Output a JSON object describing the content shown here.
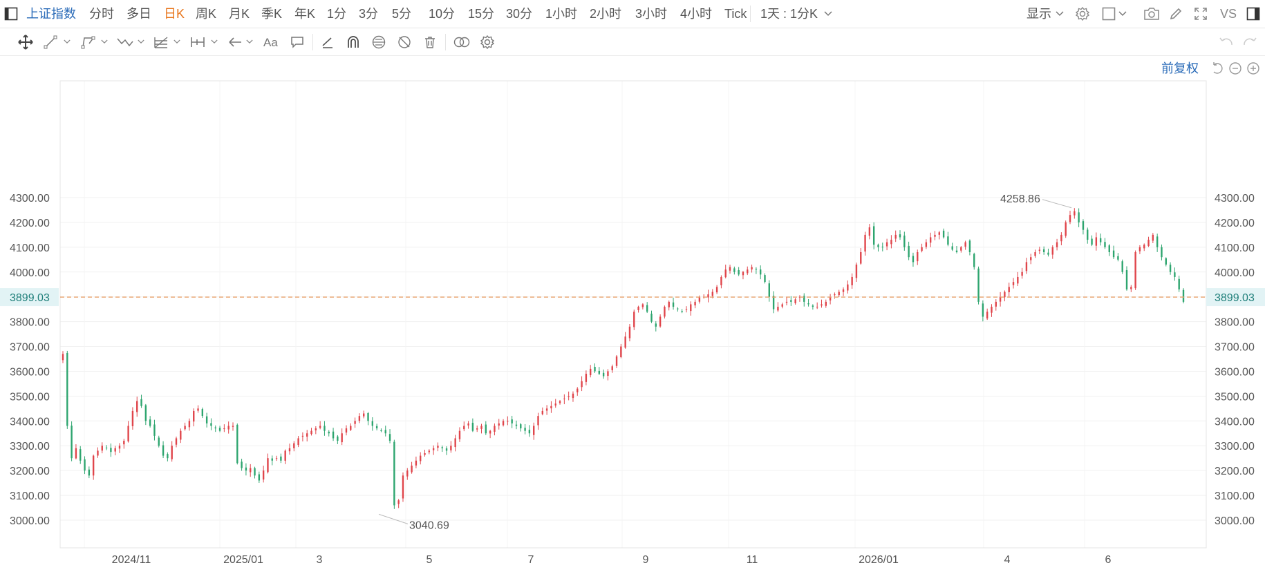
{
  "toolbar": {
    "symbol": "上证指数",
    "periods": [
      "分时",
      "多日",
      "日K",
      "周K",
      "月K",
      "季K",
      "年K",
      "1分",
      "3分",
      "5分",
      "10分",
      "15分",
      "30分",
      "1小时",
      "2小时",
      "3小时",
      "4小时",
      "Tick"
    ],
    "active_period": "日K",
    "interval_select": "1天 : 1分K",
    "display_label": "显示",
    "compare_label": "VS"
  },
  "adjust_label": "前复权",
  "colors": {
    "up": "#e0454b",
    "down": "#2ea56f",
    "last_price_line": "#e8a06a",
    "last_price_badge": "#e2f3f5",
    "accent": "#2a6bb8",
    "active": "#e8761c"
  },
  "icons": [
    "sidebar-toggle-icon",
    "settings-icon",
    "layout-icon",
    "camera-icon",
    "pencil-icon",
    "fullscreen-icon",
    "panel-icon",
    "move-icon",
    "line-tool-icon",
    "polyline-tool-icon",
    "wave-tool-icon",
    "fib-tool-icon",
    "measure-tool-icon",
    "arrow-tool-icon",
    "text-tool-icon",
    "comment-icon",
    "draw-pen-icon",
    "magnet-icon",
    "eye-lock-icon",
    "hide-icon",
    "trash-icon",
    "link-icon",
    "draw-settings-icon",
    "undo-icon",
    "redo-icon",
    "reset-icon",
    "zoom-out-icon",
    "zoom-in-icon"
  ],
  "chart_data": {
    "type": "candlestick",
    "ylim": [
      2950,
      4340
    ],
    "y_ticks": [
      3000,
      3100,
      3200,
      3300,
      3400,
      3500,
      3600,
      3700,
      3800,
      3900,
      4000,
      4100,
      4200,
      4300
    ],
    "y_tick_labels": [
      "3000.00",
      "3100.00",
      "3200.00",
      "3300.00",
      "3400.00",
      "3500.00",
      "3600.00",
      "3700.00",
      "3800.00",
      "3900.00",
      "4000.00",
      "4100.00",
      "4200.00",
      "4300.00"
    ],
    "x_labels": [
      {
        "label": "2024/11",
        "date": "2024-11-01"
      },
      {
        "label": "2025/01",
        "date": "2025-01-02"
      },
      {
        "label": "3",
        "date": "2025-03-03"
      },
      {
        "label": "5",
        "date": "2025-05-06"
      },
      {
        "label": "7",
        "date": "2025-07-01"
      },
      {
        "label": "9",
        "date": "2025-09-01"
      },
      {
        "label": "11",
        "date": "2025-11-03"
      },
      {
        "label": "2026/01",
        "date": "2026-01-05"
      },
      {
        "label": "4",
        "date": "2026-04-01"
      },
      {
        "label": "6",
        "date": "2026-06-01"
      }
    ],
    "last_price": 3899.03,
    "last_price_label": "3899.03",
    "high_label": "4258.86",
    "low_label": "3040.69",
    "closes": [
      3670,
      3380,
      3250,
      3290,
      3240,
      3200,
      3180,
      3260,
      3280,
      3300,
      3290,
      3275,
      3290,
      3300,
      3320,
      3380,
      3440,
      3480,
      3460,
      3400,
      3380,
      3340,
      3300,
      3260,
      3250,
      3300,
      3330,
      3360,
      3380,
      3400,
      3440,
      3450,
      3420,
      3390,
      3380,
      3370,
      3360,
      3370,
      3380,
      3380,
      3230,
      3210,
      3200,
      3210,
      3180,
      3160,
      3200,
      3250,
      3240,
      3250,
      3240,
      3280,
      3290,
      3310,
      3330,
      3340,
      3350,
      3360,
      3370,
      3380,
      3360,
      3350,
      3330,
      3320,
      3350,
      3370,
      3380,
      3400,
      3420,
      3430,
      3400,
      3380,
      3370,
      3360,
      3350,
      3320,
      3060,
      3080,
      3180,
      3200,
      3220,
      3240,
      3260,
      3270,
      3280,
      3290,
      3300,
      3290,
      3280,
      3300,
      3330,
      3360,
      3380,
      3390,
      3360,
      3370,
      3380,
      3350,
      3360,
      3380,
      3390,
      3400,
      3400,
      3390,
      3380,
      3370,
      3360,
      3350,
      3380,
      3420,
      3440,
      3450,
      3460,
      3470,
      3480,
      3490,
      3500,
      3510,
      3530,
      3560,
      3590,
      3610,
      3600,
      3590,
      3580,
      3600,
      3620,
      3660,
      3700,
      3740,
      3780,
      3840,
      3860,
      3870,
      3840,
      3800,
      3780,
      3820,
      3860,
      3880,
      3860,
      3850,
      3840,
      3850,
      3870,
      3880,
      3900,
      3900,
      3910,
      3920,
      3940,
      3980,
      4010,
      4020,
      4000,
      3990,
      4000,
      4010,
      4020,
      4010,
      3990,
      3960,
      3900,
      3850,
      3860,
      3870,
      3880,
      3880,
      3890,
      3900,
      3880,
      3870,
      3860,
      3860,
      3870,
      3880,
      3900,
      3910,
      3920,
      3930,
      3950,
      3980,
      4030,
      4080,
      4150,
      4180,
      4110,
      4100,
      4100,
      4120,
      4130,
      4150,
      4140,
      4100,
      4060,
      4040,
      4080,
      4100,
      4120,
      4140,
      4150,
      4160,
      4140,
      4110,
      4090,
      4080,
      4100,
      4120,
      4080,
      4020,
      3880,
      3820,
      3840,
      3860,
      3880,
      3900,
      3920,
      3940,
      3960,
      3980,
      4000,
      4040,
      4060,
      4080,
      4090,
      4080,
      4070,
      4100,
      4120,
      4150,
      4200,
      4230,
      4245,
      4200,
      4170,
      4130,
      4110,
      4140,
      4120,
      4100,
      4080,
      4060,
      4050,
      4000,
      3930,
      3940,
      4080,
      4100,
      4110,
      4130,
      4150,
      4100,
      4060,
      4030,
      4000,
      3980,
      3930,
      3880
    ]
  }
}
